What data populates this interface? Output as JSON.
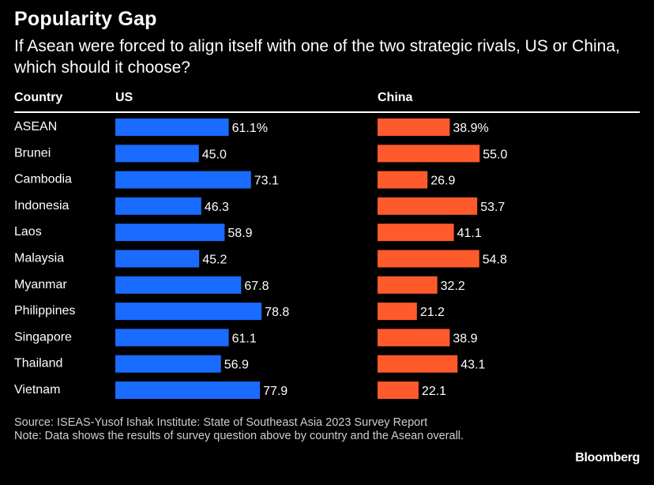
{
  "title": "Popularity Gap",
  "subtitle": "If Asean were forced to align itself with one of the two strategic rivals, US or China, which should it choose?",
  "headers": {
    "country": "Country",
    "us": "US",
    "china": "China"
  },
  "colors": {
    "us": "#1a6bff",
    "china": "#ff5a2c",
    "background": "#000000",
    "text": "#ffffff"
  },
  "chart_data": {
    "type": "bar",
    "orientation": "horizontal",
    "categories": [
      "ASEAN",
      "Brunei",
      "Cambodia",
      "Indonesia",
      "Laos",
      "Malaysia",
      "Myanmar",
      "Philippines",
      "Singapore",
      "Thailand",
      "Vietnam"
    ],
    "series": [
      {
        "name": "US",
        "values": [
          61.1,
          45.0,
          73.1,
          46.3,
          58.9,
          45.2,
          67.8,
          78.8,
          61.1,
          56.9,
          77.9
        ],
        "labels": [
          "61.1%",
          "45.0",
          "73.1",
          "46.3",
          "58.9",
          "45.2",
          "67.8",
          "78.8",
          "61.1",
          "56.9",
          "77.9"
        ]
      },
      {
        "name": "China",
        "values": [
          38.9,
          55.0,
          26.9,
          53.7,
          41.1,
          54.8,
          32.2,
          21.2,
          38.9,
          43.1,
          22.1
        ],
        "labels": [
          "38.9%",
          "55.0",
          "26.9",
          "53.7",
          "41.1",
          "54.8",
          "32.2",
          "21.2",
          "38.9",
          "43.1",
          "22.1"
        ]
      }
    ]
  },
  "footnote": {
    "source": "Source: ISEAS-Yusof Ishak Institute: State of Southeast Asia 2023 Survey Report",
    "note": "Note: Data shows the results of survey question above by country and the Asean overall."
  },
  "logo": "Bloomberg"
}
